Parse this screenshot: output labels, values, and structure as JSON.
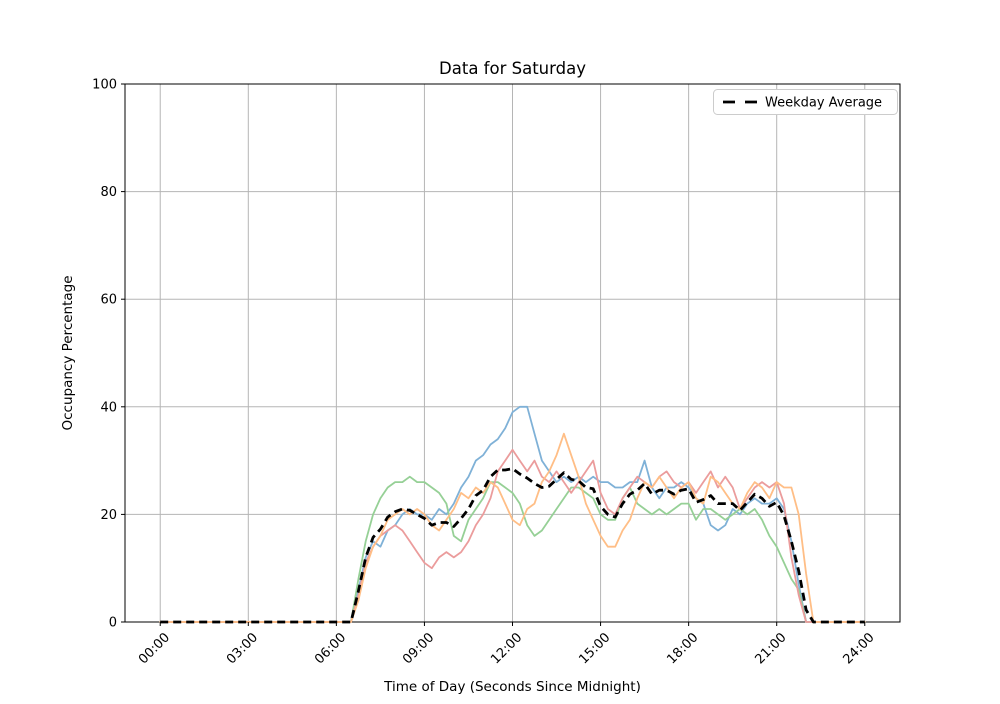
{
  "chart_data": {
    "type": "line",
    "title": "Data for Saturday",
    "xlabel": "Time of Day (Seconds Since Midnight)",
    "ylabel": "Occupancy Percentage",
    "grid": true,
    "xlim_hours": [
      -1.2,
      25.2
    ],
    "ylim": [
      0,
      100
    ],
    "x_step_hours": 0.25,
    "x_ticks": [
      {
        "hour": 0,
        "label": "00:00"
      },
      {
        "hour": 3,
        "label": "03:00"
      },
      {
        "hour": 6,
        "label": "06:00"
      },
      {
        "hour": 9,
        "label": "09:00"
      },
      {
        "hour": 12,
        "label": "12:00"
      },
      {
        "hour": 15,
        "label": "15:00"
      },
      {
        "hour": 18,
        "label": "18:00"
      },
      {
        "hour": 21,
        "label": "21:00"
      },
      {
        "hour": 24,
        "label": "24:00"
      }
    ],
    "y_ticks": [
      0,
      20,
      40,
      60,
      80,
      100
    ],
    "colors": {
      "grid": "#b5b5b5",
      "spine": "#000000"
    },
    "legend": {
      "position": "upper right",
      "entries": [
        "Weekday Average"
      ]
    },
    "series": [
      {
        "color": "#7fb1d7",
        "values": [
          0,
          0,
          0,
          0,
          0,
          0,
          0,
          0,
          0,
          0,
          0,
          0,
          0,
          0,
          0,
          0,
          0,
          0,
          0,
          0,
          0,
          0,
          0,
          0,
          0,
          0,
          0,
          6,
          12,
          15,
          14,
          17,
          18,
          20,
          21,
          20,
          20,
          19,
          21,
          20,
          22,
          25,
          27,
          30,
          31,
          33,
          34,
          36,
          39,
          40,
          40,
          35,
          30,
          28,
          26,
          27,
          26,
          27,
          26,
          27,
          26,
          26,
          25,
          25,
          26,
          26,
          30,
          25,
          23,
          25,
          25,
          26,
          25,
          23,
          22,
          18,
          17,
          18,
          21,
          20,
          22,
          23,
          22,
          22,
          23,
          21,
          15,
          7,
          0,
          0,
          0,
          0,
          0,
          0,
          0,
          0,
          0
        ]
      },
      {
        "color": "#96d096",
        "values": [
          0,
          0,
          0,
          0,
          0,
          0,
          0,
          0,
          0,
          0,
          0,
          0,
          0,
          0,
          0,
          0,
          0,
          0,
          0,
          0,
          0,
          0,
          0,
          0,
          0,
          0,
          0,
          8,
          15,
          20,
          23,
          25,
          26,
          26,
          27,
          26,
          26,
          25,
          24,
          22,
          16,
          15,
          19,
          21,
          23,
          26,
          26,
          25,
          24,
          22,
          18,
          16,
          17,
          19,
          21,
          23,
          25,
          25,
          24,
          23,
          20,
          19,
          19,
          23,
          25,
          22,
          21,
          20,
          21,
          20,
          21,
          22,
          22,
          19,
          21,
          21,
          20,
          19,
          20,
          21,
          20,
          21,
          19,
          16,
          14,
          11,
          8,
          6,
          0,
          0,
          0,
          0,
          0,
          0,
          0,
          0,
          0
        ]
      },
      {
        "color": "#eb9c9c",
        "values": [
          0,
          0,
          0,
          0,
          0,
          0,
          0,
          0,
          0,
          0,
          0,
          0,
          0,
          0,
          0,
          0,
          0,
          0,
          0,
          0,
          0,
          0,
          0,
          0,
          0,
          0,
          0,
          5,
          11,
          14,
          16,
          17,
          18,
          17,
          15,
          13,
          11,
          10,
          12,
          13,
          12,
          13,
          15,
          18,
          20,
          23,
          28,
          30,
          32,
          30,
          28,
          30,
          27,
          26,
          28,
          26,
          24,
          26,
          28,
          30,
          24,
          21,
          20,
          23,
          25,
          27,
          26,
          25,
          27,
          28,
          26,
          25,
          26,
          24,
          26,
          28,
          25,
          27,
          25,
          21,
          23,
          25,
          26,
          25,
          26,
          22,
          12,
          5,
          0,
          0,
          0,
          0,
          0,
          0,
          0,
          0,
          0
        ]
      },
      {
        "color": "#ffbe86",
        "values": [
          0,
          0,
          0,
          0,
          0,
          0,
          0,
          0,
          0,
          0,
          0,
          0,
          0,
          0,
          0,
          0,
          0,
          0,
          0,
          0,
          0,
          0,
          0,
          0,
          0,
          0,
          0,
          4,
          10,
          14,
          16,
          19,
          20,
          21,
          20,
          21,
          20,
          18,
          17,
          19,
          21,
          24,
          23,
          25,
          24,
          26,
          25,
          22,
          19,
          18,
          21,
          22,
          26,
          28,
          31,
          35,
          31,
          27,
          22,
          19,
          16,
          14,
          14,
          17,
          19,
          23,
          26,
          25,
          27,
          25,
          23,
          25,
          26,
          23,
          22,
          27,
          26,
          24,
          22,
          21,
          24,
          26,
          25,
          23,
          26,
          25,
          25,
          20,
          9,
          0,
          0,
          0,
          0,
          0,
          0,
          0,
          0
        ]
      }
    ],
    "average": {
      "label": "Weekday Average",
      "color": "#000000",
      "dash": true,
      "values": [
        0,
        0,
        0,
        0,
        0,
        0,
        0,
        0,
        0,
        0,
        0,
        0,
        0,
        0,
        0,
        0,
        0,
        0,
        0,
        0,
        0,
        0,
        0,
        0,
        0,
        0,
        0,
        5.75,
        12,
        15.75,
        17.25,
        19.5,
        20.5,
        21,
        20.75,
        20,
        19.25,
        18,
        18.5,
        18.5,
        17.75,
        19.25,
        21,
        23.5,
        24.5,
        27,
        28.25,
        28.25,
        28.5,
        27.5,
        26.75,
        25.75,
        25,
        25.25,
        26.5,
        27.75,
        26.5,
        26.25,
        25,
        24.75,
        21.5,
        20,
        19.5,
        22,
        23.75,
        24.5,
        25.75,
        23.75,
        24.5,
        24.5,
        23.75,
        24.5,
        24.75,
        22.25,
        22.75,
        23.5,
        22,
        22,
        22,
        20.75,
        22.25,
        23.75,
        23,
        21.5,
        22.25,
        19.75,
        15,
        9.5,
        2.25,
        0,
        0,
        0,
        0,
        0,
        0,
        0,
        0
      ]
    }
  }
}
